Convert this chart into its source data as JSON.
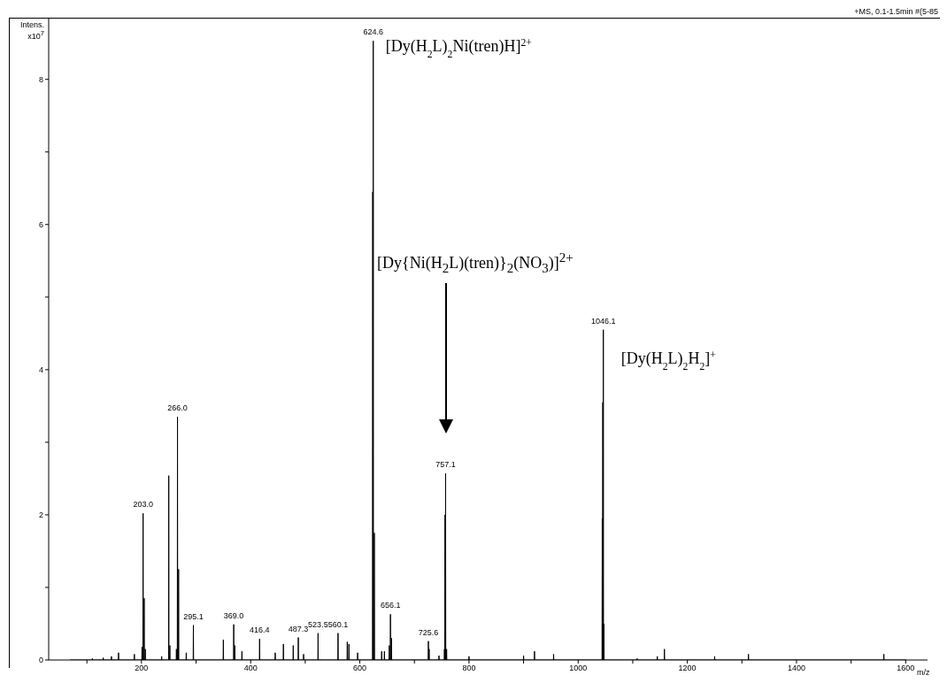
{
  "chart_data": {
    "type": "line",
    "xlabel": "m/z",
    "ylabel": "Intens. x10$^{7}$",
    "xlim": [
      30,
      1640
    ],
    "ylim": [
      0,
      8.85
    ],
    "xticks": [
      {
        "value": 100,
        "label": null
      },
      200,
      {
        "value": 300,
        "label": null
      },
      400,
      {
        "value": 500,
        "label": null
      },
      600,
      {
        "value": 700,
        "label": null
      },
      800,
      {
        "value": 900,
        "label": null
      },
      1000,
      {
        "value": 1100,
        "label": null
      },
      1200,
      {
        "value": 1300,
        "label": null
      },
      1400,
      {
        "value": 1500,
        "label": null
      },
      1600
    ],
    "yticks": [
      0,
      {
        "value": 1,
        "label": null
      },
      2,
      {
        "value": 3,
        "label": null
      },
      4,
      {
        "value": 5,
        "label": null
      },
      6,
      {
        "value": 7,
        "label": null
      },
      8
    ],
    "series": [
      {
        "color": "#000000",
        "x": [
          70,
          109.6,
          110,
          110.4,
          129.6,
          130,
          130.4,
          144.6,
          145,
          145.4,
          157.6,
          158,
          158.4,
          186.6,
          187,
          187.4,
          200.6,
          201,
          201.4,
          202.6,
          203,
          203.4,
          204.6,
          205,
          205.4,
          206.6,
          207,
          207.4,
          236.6,
          237,
          237.4,
          249.6,
          250,
          250.4,
          251.6,
          252,
          252.4,
          263.6,
          264,
          264.4,
          265.6,
          266,
          266.4,
          267.6,
          268,
          268.4,
          281.6,
          282,
          282.4,
          294.7,
          295.1,
          295.5,
          349.6,
          350,
          350.4,
          368.6,
          369,
          369.4,
          370.6,
          371,
          371.4,
          383.6,
          384,
          384.4,
          416,
          416.4,
          416.8,
          444.6,
          445,
          445.4,
          459.6,
          460,
          460.4,
          477.6,
          478,
          478.4,
          486.9,
          487.3,
          487.7,
          496.6,
          497,
          497.4,
          523.1,
          523.5,
          523.9,
          559.7,
          560.1,
          560.5,
          576.6,
          577,
          577.4,
          579.6,
          580,
          580.4,
          595.6,
          596,
          596.4,
          623.2,
          623.6,
          624,
          624.2,
          624.6,
          625,
          626.2,
          626.6,
          627,
          639.6,
          640,
          640.4,
          644.6,
          645,
          645.4,
          653.6,
          654,
          654.4,
          655.7,
          656.1,
          656.5,
          657.6,
          658,
          658.4,
          725.2,
          725.6,
          726,
          726.6,
          727,
          727.4,
          744.6,
          745,
          745.4,
          754.6,
          755,
          755.4,
          755.7,
          756.1,
          756.5,
          756.7,
          757.1,
          757.5,
          758.6,
          759,
          759.4,
          799.6,
          800,
          800.4,
          899.6,
          900,
          900.4,
          919.6,
          920,
          920.4,
          954.6,
          955,
          955.4,
          1043.7,
          1044.1,
          1044.5,
          1044.7,
          1045.1,
          1045.5,
          1045.7,
          1046.1,
          1046.5,
          1046.7,
          1047.1,
          1047.5,
          1107.6,
          1108,
          1108.4,
          1144.6,
          1145,
          1145.4,
          1157.6,
          1158,
          1158.4,
          1249.6,
          1250,
          1250.4,
          1311.6,
          1312,
          1312.4,
          1559.6,
          1560,
          1560.4,
          1600
        ],
        "values": [
          0,
          0,
          0.02,
          0,
          0,
          0.03,
          0,
          0,
          0.05,
          0,
          0,
          0.1,
          0,
          0,
          0.08,
          0,
          0,
          0.18,
          0,
          0,
          2.02,
          0,
          0,
          0.85,
          0,
          0,
          0.15,
          0,
          0,
          0.05,
          0,
          0,
          2.54,
          0,
          0,
          0.2,
          0,
          0,
          0.15,
          0,
          0,
          3.35,
          0,
          0,
          1.25,
          0,
          0,
          0.1,
          0,
          0,
          0.48,
          0,
          0,
          0.28,
          0,
          0,
          0.49,
          0,
          0,
          0.2,
          0,
          0,
          0.12,
          0,
          0,
          0.29,
          0,
          0,
          0.1,
          0,
          0,
          0.22,
          0,
          0,
          0.2,
          0,
          0,
          0.31,
          0,
          0,
          0.08,
          0,
          0,
          0.37,
          0,
          0,
          0.37,
          0,
          0,
          0.25,
          0,
          0,
          0.22,
          0,
          0,
          0.1,
          0,
          0,
          6.45,
          0,
          0,
          8.53,
          0,
          0,
          1.75,
          0,
          0,
          0.12,
          0,
          0,
          0.12,
          0,
          0,
          0.2,
          0,
          0,
          0.63,
          0,
          0,
          0.3,
          0,
          0,
          0.26,
          0,
          0,
          0.15,
          0,
          0,
          0.06,
          0,
          0,
          0.15,
          0,
          0,
          2.0,
          0,
          0,
          2.57,
          0,
          0,
          0.15,
          0,
          0,
          0.05,
          0,
          0,
          0.06,
          0,
          0,
          0.12,
          0,
          0,
          0.08,
          0,
          0,
          1.95,
          0,
          0,
          3.55,
          0,
          0,
          4.55,
          0,
          0,
          0.5,
          0,
          0,
          0.02,
          0,
          0,
          0.05,
          0,
          0,
          0.15,
          0,
          0,
          0.05,
          0,
          0,
          0.08,
          0,
          0,
          0.08,
          0,
          0
        ]
      }
    ],
    "annotations": [
      "+MS, 0.1-1.5min #(5-85",
      {
        "text": "203.0",
        "x": 203,
        "y": 2.02
      },
      {
        "text": "266.0",
        "x": 266,
        "y": 3.35
      },
      {
        "text": "295.1",
        "x": 295.1,
        "y": 0.48
      },
      {
        "text": "369.0",
        "x": 369,
        "y": 0.49
      },
      {
        "text": "416.4",
        "x": 416.4,
        "y": 0.29
      },
      {
        "text": "487.3",
        "x": 487.3,
        "y": 0.31
      },
      {
        "text": "523.5",
        "x": 523.5,
        "y": 0.37
      },
      {
        "text": "560.1",
        "x": 560.1,
        "y": 0.37
      },
      {
        "text": "624.6",
        "x": 624.6,
        "y": 8.53
      },
      {
        "text": "656.1",
        "x": 656.1,
        "y": 0.63
      },
      {
        "text": "725.6",
        "x": 725.6,
        "y": 0.26
      },
      {
        "text": "757.1",
        "x": 757.1,
        "y": 2.57
      },
      {
        "text": "1046.1",
        "x": 1046.1,
        "y": 4.55
      },
      {
        "text": "[Dy(H$_{2}$L)$_{2}$Ni(tren)H]$^{2+}$",
        "x": 624.6,
        "y": 8.53
      },
      "[Dy{Ni(H$_{2}$L)(tren)}$_{2}$(NO$_{3}$)]$^{2+}$",
      {
        "text": "[Dy(H$_{2}$L)$_{2}$H$_{2}$]$^{+}$",
        "x": 1046.1,
        "y": 4.55
      }
    ]
  }
}
